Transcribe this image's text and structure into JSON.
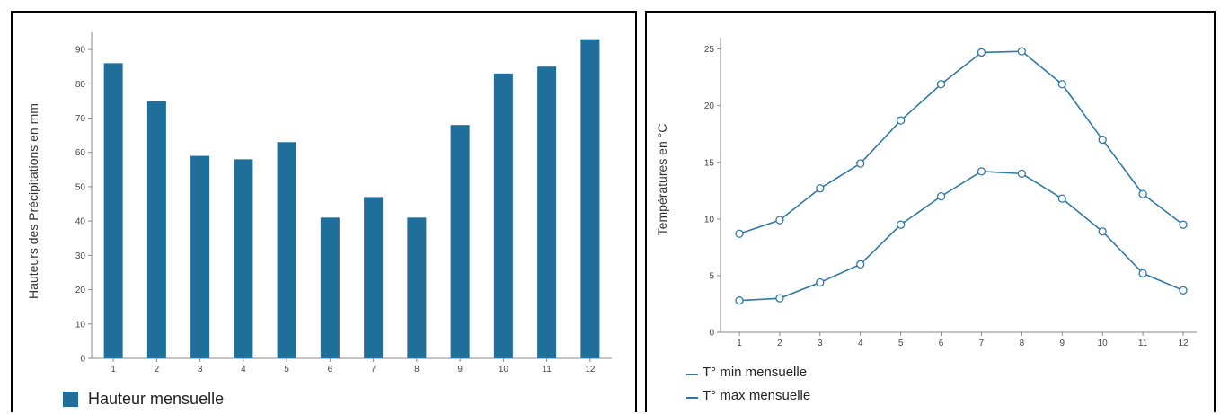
{
  "colors": {
    "bar": "#1f6f9a",
    "line": "#2f78a8",
    "axis": "#888888",
    "grid": "#cccccc"
  },
  "chart_data": [
    {
      "type": "bar",
      "categories": [
        "1",
        "2",
        "3",
        "4",
        "5",
        "6",
        "7",
        "8",
        "9",
        "10",
        "11",
        "12"
      ],
      "values": [
        86,
        75,
        59,
        58,
        63,
        41,
        47,
        41,
        68,
        83,
        85,
        93
      ],
      "ylabel": "Hauteurs des Précipitations en mm",
      "ylim": [
        0,
        95
      ],
      "yticks": [
        "0",
        "10",
        "20",
        "30",
        "40",
        "50",
        "60",
        "70",
        "80",
        "90"
      ],
      "legend": {
        "label": "Hauteur mensuelle",
        "placement": "bottom-left"
      },
      "grid": false
    },
    {
      "type": "line",
      "x": [
        "1",
        "2",
        "3",
        "4",
        "5",
        "6",
        "7",
        "8",
        "9",
        "10",
        "11",
        "12"
      ],
      "ylabel": "Températures en °C",
      "ylim": [
        0,
        26
      ],
      "yticks": [
        "0",
        "5",
        "10",
        "15",
        "20",
        "25"
      ],
      "series": [
        {
          "name": "T° min mensuelle",
          "values": [
            2.8,
            3.0,
            4.4,
            6.0,
            9.5,
            12.0,
            14.2,
            14.0,
            11.8,
            8.9,
            5.2,
            3.7
          ]
        },
        {
          "name": "T° max mensuelle",
          "values": [
            8.7,
            9.9,
            12.7,
            14.9,
            18.7,
            21.9,
            24.7,
            24.8,
            21.9,
            17.0,
            12.2,
            9.5
          ]
        }
      ],
      "legend": {
        "placement": "bottom-left"
      },
      "grid": false
    }
  ]
}
